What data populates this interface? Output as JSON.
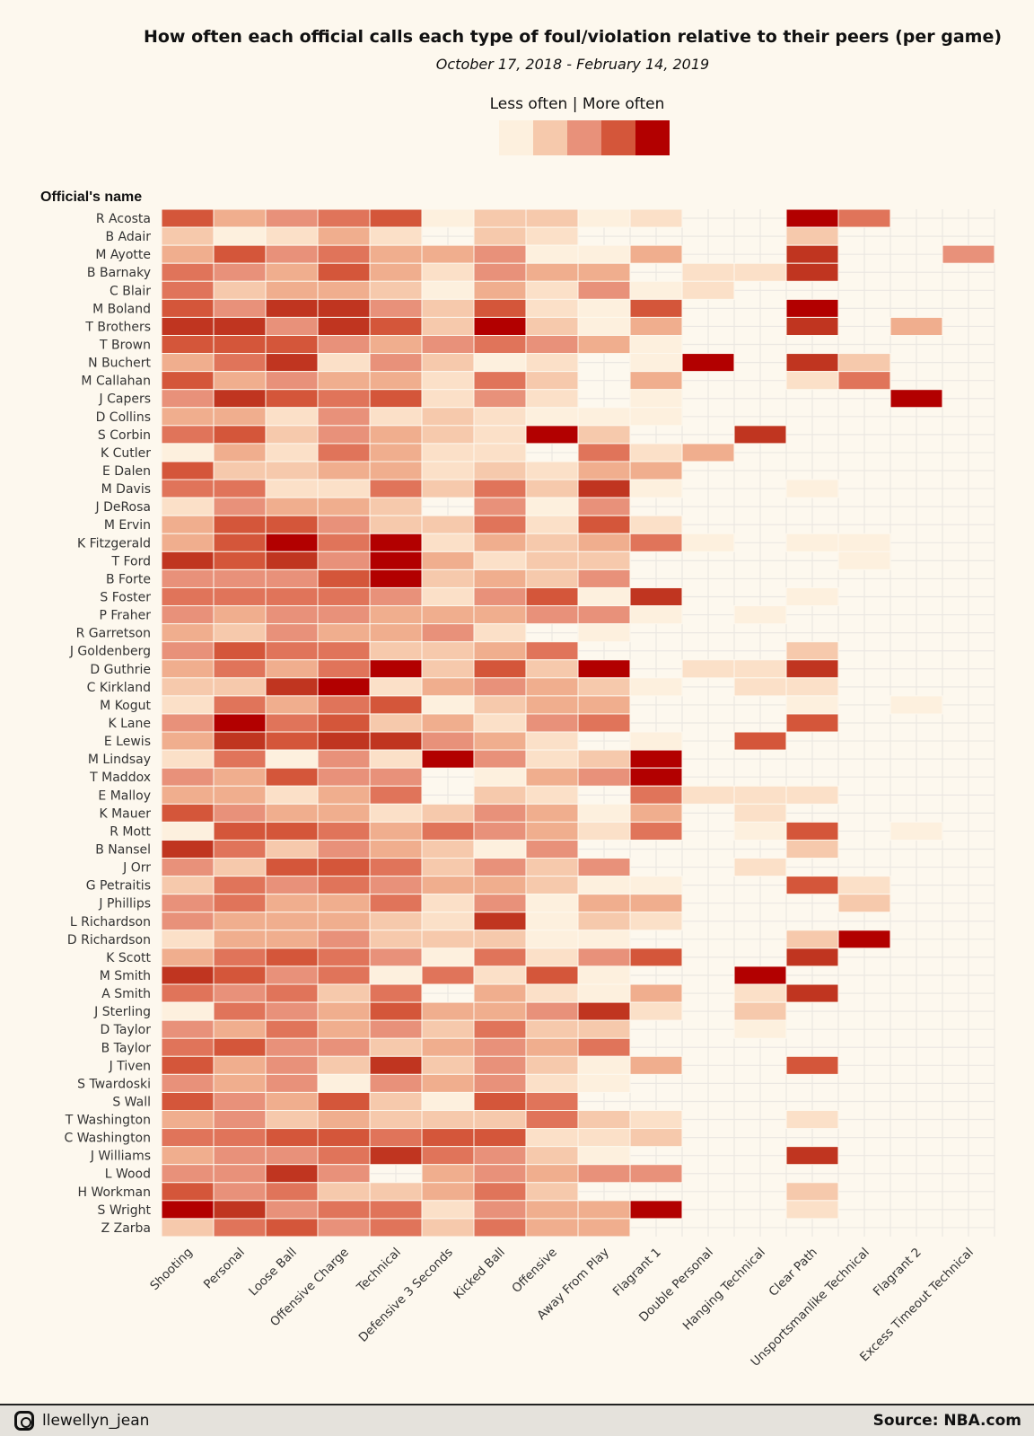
{
  "chart_data": {
    "type": "heatmap",
    "title": "How often each official calls each type of foul/violation relative to their peers (per game)",
    "subtitle": "October 17, 2018 - February 14, 2019",
    "legend_title": "Less often | More often",
    "legend_placement": "top",
    "ylabel": "Official's name",
    "scale_note_levels": "0 = no calls, 1 (less often) to 9 (more often)",
    "palette": [
      "#fdf0de",
      "#fbe0c8",
      "#f6c9ac",
      "#f0ae8e",
      "#e8917a",
      "#e0745a",
      "#d4563a",
      "#c03520",
      "#b20000"
    ],
    "legend_colors": [
      "#fdf0de",
      "#f6c9ac",
      "#e8917a",
      "#d4563a",
      "#b20000"
    ],
    "grid": true,
    "columns": [
      "Shooting",
      "Personal",
      "Loose Ball",
      "Offensive Charge",
      "Technical",
      "Defensive 3 Seconds",
      "Kicked Ball",
      "Offensive",
      "Away From Play",
      "Flagrant 1",
      "Double Personal",
      "Hanging Technical",
      "Clear Path",
      "Unsportsmanlike Technical",
      "Flagrant 2",
      "Excess Timeout Technical"
    ],
    "rows": [
      {
        "name": "R Acosta",
        "values": [
          7,
          4,
          5,
          6,
          7,
          1,
          3,
          3,
          1,
          2,
          0,
          0,
          9,
          6,
          0,
          0
        ]
      },
      {
        "name": "B Adair",
        "values": [
          3,
          1,
          2,
          4,
          2,
          0,
          3,
          2,
          0,
          0,
          0,
          0,
          3,
          0,
          0,
          0
        ]
      },
      {
        "name": "M Ayotte",
        "values": [
          4,
          7,
          5,
          6,
          4,
          4,
          5,
          1,
          1,
          4,
          0,
          0,
          8,
          0,
          0,
          5
        ]
      },
      {
        "name": "B Barnaky",
        "values": [
          6,
          5,
          4,
          7,
          4,
          2,
          5,
          4,
          4,
          0,
          2,
          2,
          8,
          0,
          0,
          0
        ]
      },
      {
        "name": "C Blair",
        "values": [
          6,
          3,
          4,
          4,
          3,
          1,
          4,
          2,
          5,
          1,
          2,
          0,
          0,
          0,
          0,
          0
        ]
      },
      {
        "name": "M Boland",
        "values": [
          7,
          5,
          8,
          8,
          5,
          3,
          7,
          2,
          1,
          7,
          0,
          0,
          9,
          0,
          0,
          0
        ]
      },
      {
        "name": "T Brothers",
        "values": [
          8,
          8,
          5,
          8,
          7,
          3,
          9,
          3,
          1,
          4,
          0,
          0,
          8,
          0,
          4,
          0
        ]
      },
      {
        "name": "T Brown",
        "values": [
          7,
          7,
          7,
          5,
          4,
          5,
          6,
          5,
          4,
          1,
          0,
          0,
          0,
          0,
          0,
          0
        ]
      },
      {
        "name": "N Buchert",
        "values": [
          4,
          6,
          8,
          2,
          5,
          3,
          1,
          2,
          0,
          1,
          9,
          0,
          8,
          3,
          0,
          0
        ]
      },
      {
        "name": "M Callahan",
        "values": [
          7,
          4,
          5,
          4,
          4,
          2,
          6,
          3,
          0,
          4,
          0,
          0,
          2,
          6,
          0,
          0
        ]
      },
      {
        "name": "J Capers",
        "values": [
          5,
          8,
          7,
          6,
          7,
          2,
          5,
          2,
          0,
          1,
          0,
          0,
          0,
          0,
          9,
          0
        ]
      },
      {
        "name": "D Collins",
        "values": [
          4,
          4,
          2,
          5,
          2,
          3,
          2,
          1,
          1,
          1,
          0,
          0,
          0,
          0,
          0,
          0
        ]
      },
      {
        "name": "S Corbin",
        "values": [
          6,
          7,
          3,
          5,
          4,
          3,
          2,
          9,
          3,
          0,
          0,
          8,
          0,
          0,
          0,
          0
        ]
      },
      {
        "name": "K Cutler",
        "values": [
          1,
          4,
          2,
          6,
          4,
          2,
          2,
          0,
          6,
          2,
          4,
          0,
          0,
          0,
          0,
          0
        ]
      },
      {
        "name": "E Dalen",
        "values": [
          7,
          3,
          3,
          4,
          4,
          2,
          3,
          2,
          4,
          4,
          0,
          0,
          0,
          0,
          0,
          0
        ]
      },
      {
        "name": "M Davis",
        "values": [
          6,
          6,
          2,
          2,
          6,
          3,
          6,
          3,
          8,
          1,
          0,
          0,
          1,
          0,
          0,
          0
        ]
      },
      {
        "name": "J DeRosa",
        "values": [
          2,
          5,
          4,
          4,
          3,
          0,
          5,
          1,
          5,
          0,
          0,
          0,
          0,
          0,
          0,
          0
        ]
      },
      {
        "name": "M Ervin",
        "values": [
          4,
          7,
          7,
          5,
          3,
          3,
          6,
          2,
          7,
          2,
          0,
          0,
          0,
          0,
          0,
          0
        ]
      },
      {
        "name": "K Fitzgerald",
        "values": [
          4,
          7,
          9,
          6,
          9,
          2,
          4,
          3,
          4,
          6,
          1,
          0,
          1,
          1,
          0,
          0
        ]
      },
      {
        "name": "T Ford",
        "values": [
          8,
          7,
          8,
          5,
          9,
          4,
          2,
          3,
          3,
          0,
          0,
          0,
          0,
          1,
          0,
          0
        ]
      },
      {
        "name": "B Forte",
        "values": [
          5,
          5,
          5,
          7,
          9,
          3,
          4,
          3,
          5,
          0,
          0,
          0,
          0,
          0,
          0,
          0
        ]
      },
      {
        "name": "S Foster",
        "values": [
          6,
          6,
          6,
          6,
          5,
          2,
          5,
          7,
          1,
          8,
          0,
          0,
          1,
          0,
          0,
          0
        ]
      },
      {
        "name": "P Fraher",
        "values": [
          5,
          4,
          5,
          5,
          4,
          4,
          4,
          5,
          5,
          1,
          0,
          1,
          0,
          0,
          0,
          0
        ]
      },
      {
        "name": "R Garretson",
        "values": [
          4,
          3,
          5,
          4,
          4,
          5,
          2,
          0,
          1,
          0,
          0,
          0,
          0,
          0,
          0,
          0
        ]
      },
      {
        "name": "J Goldenberg",
        "values": [
          5,
          7,
          6,
          6,
          3,
          3,
          4,
          6,
          0,
          0,
          0,
          0,
          3,
          0,
          0,
          0
        ]
      },
      {
        "name": "D Guthrie",
        "values": [
          4,
          6,
          4,
          6,
          9,
          3,
          7,
          3,
          9,
          0,
          2,
          2,
          8,
          0,
          0,
          0
        ]
      },
      {
        "name": "C Kirkland",
        "values": [
          3,
          3,
          8,
          9,
          2,
          4,
          5,
          4,
          3,
          1,
          0,
          2,
          2,
          0,
          0,
          0
        ]
      },
      {
        "name": "M Kogut",
        "values": [
          2,
          6,
          4,
          6,
          7,
          1,
          3,
          4,
          4,
          0,
          0,
          0,
          1,
          0,
          1,
          0
        ]
      },
      {
        "name": "K Lane",
        "values": [
          5,
          9,
          6,
          7,
          3,
          4,
          2,
          5,
          6,
          0,
          0,
          0,
          7,
          0,
          0,
          0
        ]
      },
      {
        "name": "E Lewis",
        "values": [
          4,
          8,
          7,
          8,
          8,
          5,
          4,
          2,
          0,
          1,
          0,
          7,
          0,
          0,
          0,
          0
        ]
      },
      {
        "name": "M Lindsay",
        "values": [
          2,
          6,
          1,
          5,
          2,
          9,
          5,
          2,
          3,
          9,
          0,
          0,
          0,
          0,
          0,
          0
        ]
      },
      {
        "name": "T Maddox",
        "values": [
          5,
          4,
          7,
          5,
          5,
          0,
          1,
          4,
          5,
          9,
          0,
          0,
          0,
          0,
          0,
          0
        ]
      },
      {
        "name": "E Malloy",
        "values": [
          4,
          4,
          2,
          4,
          6,
          0,
          3,
          2,
          0,
          6,
          2,
          2,
          2,
          0,
          0,
          0
        ]
      },
      {
        "name": "K Mauer",
        "values": [
          7,
          5,
          4,
          4,
          2,
          3,
          5,
          4,
          1,
          4,
          0,
          2,
          0,
          0,
          0,
          0
        ]
      },
      {
        "name": "R Mott",
        "values": [
          1,
          7,
          7,
          6,
          4,
          6,
          5,
          4,
          2,
          6,
          0,
          1,
          7,
          0,
          1,
          0
        ]
      },
      {
        "name": "B Nansel",
        "values": [
          8,
          6,
          3,
          5,
          4,
          3,
          1,
          5,
          0,
          0,
          0,
          0,
          3,
          0,
          0,
          0
        ]
      },
      {
        "name": "J Orr",
        "values": [
          5,
          3,
          7,
          7,
          6,
          3,
          5,
          3,
          5,
          0,
          0,
          2,
          0,
          0,
          0,
          0
        ]
      },
      {
        "name": "G Petraitis",
        "values": [
          3,
          6,
          5,
          6,
          5,
          4,
          4,
          3,
          1,
          1,
          0,
          0,
          7,
          2,
          0,
          0
        ]
      },
      {
        "name": "J Phillips",
        "values": [
          5,
          6,
          4,
          4,
          6,
          2,
          5,
          1,
          4,
          4,
          0,
          0,
          0,
          3,
          0,
          0
        ]
      },
      {
        "name": "L Richardson",
        "values": [
          5,
          4,
          4,
          4,
          3,
          2,
          8,
          1,
          3,
          2,
          0,
          0,
          0,
          0,
          0,
          0
        ]
      },
      {
        "name": "D Richardson",
        "values": [
          2,
          4,
          4,
          5,
          3,
          3,
          3,
          1,
          1,
          0,
          0,
          0,
          3,
          9,
          0,
          0
        ]
      },
      {
        "name": "K Scott",
        "values": [
          4,
          6,
          7,
          6,
          5,
          1,
          6,
          2,
          5,
          7,
          0,
          0,
          8,
          0,
          0,
          0
        ]
      },
      {
        "name": "M Smith",
        "values": [
          8,
          7,
          5,
          6,
          1,
          6,
          2,
          7,
          1,
          0,
          0,
          9,
          0,
          0,
          0,
          0
        ]
      },
      {
        "name": "A Smith",
        "values": [
          6,
          5,
          6,
          3,
          6,
          0,
          4,
          2,
          1,
          4,
          0,
          2,
          8,
          0,
          0,
          0
        ]
      },
      {
        "name": "J Sterling",
        "values": [
          1,
          6,
          5,
          4,
          7,
          4,
          4,
          5,
          8,
          2,
          0,
          3,
          0,
          0,
          0,
          0
        ]
      },
      {
        "name": "D Taylor",
        "values": [
          5,
          4,
          6,
          4,
          5,
          3,
          6,
          3,
          3,
          0,
          0,
          1,
          0,
          0,
          0,
          0
        ]
      },
      {
        "name": "B Taylor",
        "values": [
          6,
          7,
          5,
          5,
          3,
          4,
          5,
          4,
          6,
          0,
          0,
          0,
          0,
          0,
          0,
          0
        ]
      },
      {
        "name": "J Tiven",
        "values": [
          7,
          4,
          5,
          3,
          8,
          3,
          5,
          3,
          1,
          4,
          0,
          0,
          7,
          0,
          0,
          0
        ]
      },
      {
        "name": "S Twardoski",
        "values": [
          5,
          4,
          5,
          1,
          5,
          4,
          5,
          2,
          1,
          0,
          0,
          0,
          0,
          0,
          0,
          0
        ]
      },
      {
        "name": "S Wall",
        "values": [
          7,
          5,
          4,
          7,
          3,
          1,
          7,
          6,
          0,
          0,
          0,
          0,
          0,
          0,
          0,
          0
        ]
      },
      {
        "name": "T Washington",
        "values": [
          4,
          5,
          3,
          4,
          3,
          3,
          3,
          6,
          3,
          2,
          0,
          0,
          2,
          0,
          0,
          0
        ]
      },
      {
        "name": "C Washington",
        "values": [
          6,
          6,
          7,
          7,
          6,
          7,
          7,
          2,
          2,
          3,
          0,
          0,
          0,
          0,
          0,
          0
        ]
      },
      {
        "name": "J Williams",
        "values": [
          4,
          5,
          5,
          6,
          8,
          6,
          5,
          3,
          1,
          0,
          0,
          0,
          8,
          0,
          0,
          0
        ]
      },
      {
        "name": "L Wood",
        "values": [
          5,
          5,
          8,
          5,
          0,
          4,
          5,
          4,
          5,
          5,
          0,
          0,
          0,
          0,
          0,
          0
        ]
      },
      {
        "name": "H Workman",
        "values": [
          7,
          5,
          6,
          3,
          3,
          4,
          6,
          3,
          0,
          0,
          0,
          0,
          3,
          0,
          0,
          0
        ]
      },
      {
        "name": "S Wright",
        "values": [
          9,
          8,
          5,
          6,
          6,
          2,
          5,
          4,
          4,
          9,
          0,
          0,
          2,
          0,
          0,
          0
        ]
      },
      {
        "name": "Z Zarba",
        "values": [
          3,
          6,
          7,
          5,
          6,
          3,
          6,
          4,
          4,
          0,
          0,
          0,
          0,
          0,
          0,
          0
        ]
      }
    ]
  },
  "footer": {
    "handle": "llewellyn_jean",
    "source": "Source: NBA.com",
    "icon": "instagram-icon"
  }
}
